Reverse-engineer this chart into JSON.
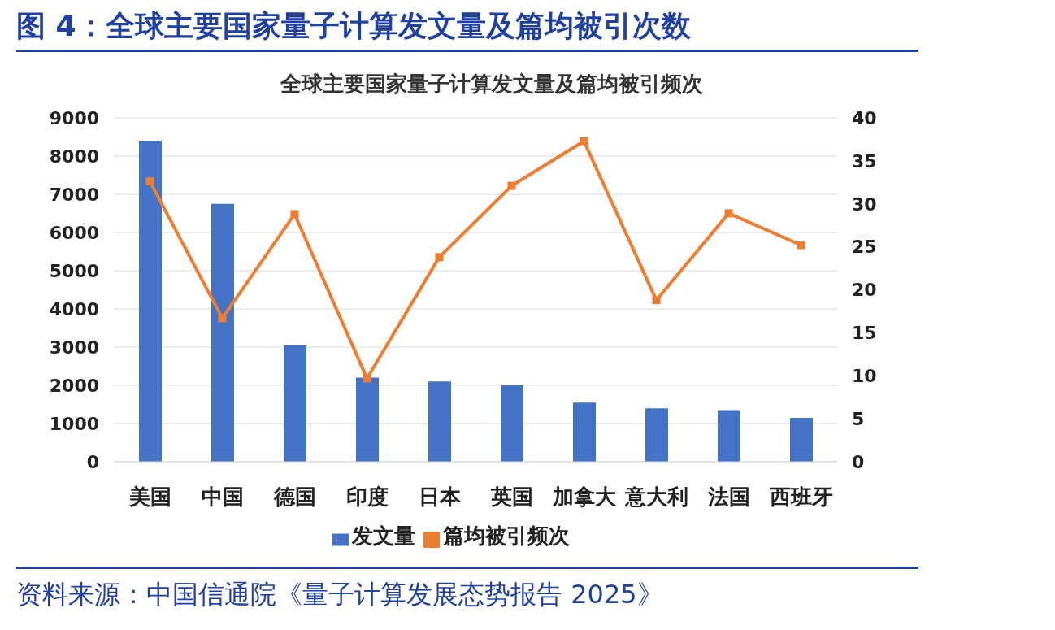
{
  "chart_data": {
    "type": "bar",
    "title": "图 4：全球主要国家量子计算发文量及篇均被引次数",
    "subtitle": "全球主要国家量子计算发文量及篇均被引频次",
    "categories": [
      "美国",
      "中国",
      "德国",
      "印度",
      "日本",
      "英国",
      "加拿大",
      "意大利",
      "法国",
      "西班牙"
    ],
    "series": [
      {
        "name": "发文量",
        "color": "#4472c4",
        "values": [
          8400,
          6750,
          3050,
          2200,
          2100,
          2000,
          1550,
          1400,
          1350,
          1150
        ]
      },
      {
        "name": "篇均被引频次",
        "type": "line",
        "axis": "y2",
        "color": "#ed7d31",
        "marker": "square",
        "values": [
          32.6,
          16.7,
          28.8,
          9.7,
          23.8,
          32.1,
          37.3,
          18.8,
          28.9,
          25.2
        ]
      }
    ],
    "ylim": [
      0,
      9000
    ],
    "yticks": [
      0,
      1000,
      2000,
      3000,
      4000,
      5000,
      6000,
      7000,
      8000,
      9000
    ],
    "y2lim": [
      0,
      40
    ],
    "y2ticks": [
      0,
      5,
      10,
      15,
      20,
      25,
      30,
      35,
      40
    ],
    "grid": "y",
    "legend": "bottom",
    "annotations": [
      "资料来源：中国信通院《量子计算发展态势报告 2025》"
    ]
  }
}
